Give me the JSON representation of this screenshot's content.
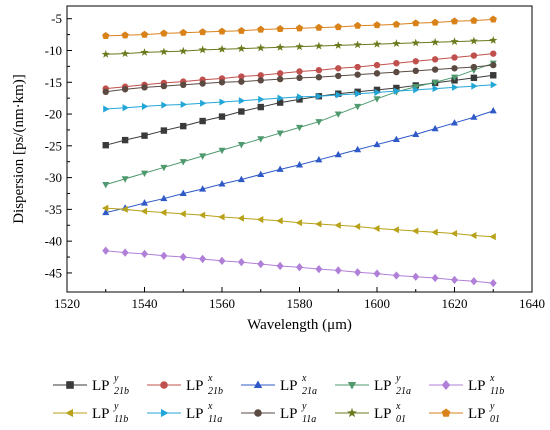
{
  "chart_data": {
    "type": "line",
    "title": "",
    "xlabel": "Wavelength (μm)",
    "ylabel": "Dispersion [ps/(nm·km)]",
    "xlim": [
      1520,
      1640
    ],
    "ylim": [
      -48,
      -3
    ],
    "xticks": [
      1520,
      1540,
      1560,
      1580,
      1600,
      1620,
      1640
    ],
    "yticks": [
      -5,
      -10,
      -15,
      -20,
      -25,
      -30,
      -35,
      -40,
      -45
    ],
    "grid": false,
    "legend_position": "bottom",
    "x": [
      1530,
      1535,
      1540,
      1545,
      1550,
      1555,
      1560,
      1565,
      1570,
      1575,
      1580,
      1585,
      1590,
      1595,
      1600,
      1605,
      1610,
      1615,
      1620,
      1625,
      1630
    ],
    "series": [
      {
        "name": "LP21b^y",
        "label": {
          "base": "LP",
          "sub": "21b",
          "sup": "y"
        },
        "marker": "square",
        "color": "#3a3a3a",
        "filled": true,
        "values": [
          -24.9,
          -24.1,
          -23.4,
          -22.6,
          -21.9,
          -21.1,
          -20.4,
          -19.6,
          -18.9,
          -18.2,
          -17.7,
          -17.2,
          -16.8,
          -16.5,
          -16.2,
          -15.9,
          -15.5,
          -15.1,
          -14.7,
          -14.3,
          -13.9
        ]
      },
      {
        "name": "LP21b^x",
        "label": {
          "base": "LP",
          "sub": "21b",
          "sup": "x"
        },
        "marker": "circle",
        "color": "#c0504d",
        "filled": true,
        "values": [
          -16.0,
          -15.7,
          -15.4,
          -15.1,
          -14.9,
          -14.6,
          -14.4,
          -14.1,
          -13.9,
          -13.6,
          -13.3,
          -13.1,
          -12.8,
          -12.6,
          -12.3,
          -12.0,
          -11.7,
          -11.4,
          -11.1,
          -10.8,
          -10.5
        ]
      },
      {
        "name": "LP21a^x",
        "label": {
          "base": "LP",
          "sub": "21a",
          "sup": "x"
        },
        "marker": "triangle-up",
        "color": "#2e59c7",
        "filled": true,
        "values": [
          -35.5,
          -34.8,
          -34.0,
          -33.3,
          -32.5,
          -31.8,
          -31.0,
          -30.3,
          -29.5,
          -28.7,
          -28.0,
          -27.2,
          -26.4,
          -25.6,
          -24.8,
          -24.0,
          -23.2,
          -22.3,
          -21.4,
          -20.5,
          -19.5
        ]
      },
      {
        "name": "LP21a^y",
        "label": {
          "base": "LP",
          "sub": "21a",
          "sup": "y"
        },
        "marker": "triangle-down",
        "color": "#4e9a6e",
        "filled": true,
        "values": [
          -31.1,
          -30.2,
          -29.3,
          -28.4,
          -27.5,
          -26.6,
          -25.7,
          -24.8,
          -23.9,
          -23.0,
          -22.1,
          -21.2,
          -20.0,
          -18.8,
          -17.6,
          -16.5,
          -15.7,
          -15.0,
          -14.2,
          -13.1,
          -12.0
        ]
      },
      {
        "name": "LP11b^x",
        "label": {
          "base": "LP",
          "sub": "11b",
          "sup": "x"
        },
        "marker": "diamond",
        "color": "#b07fd8",
        "filled": true,
        "values": [
          -41.5,
          -41.8,
          -42.0,
          -42.3,
          -42.5,
          -42.8,
          -43.1,
          -43.3,
          -43.6,
          -43.9,
          -44.1,
          -44.4,
          -44.6,
          -44.9,
          -45.1,
          -45.4,
          -45.6,
          -45.8,
          -46.1,
          -46.3,
          -46.6
        ]
      },
      {
        "name": "LP11b^y",
        "label": {
          "base": "LP",
          "sub": "11b",
          "sup": "y"
        },
        "marker": "triangle-left",
        "color": "#b8a21a",
        "filled": true,
        "values": [
          -34.8,
          -35.0,
          -35.3,
          -35.5,
          -35.7,
          -35.9,
          -36.2,
          -36.4,
          -36.6,
          -36.8,
          -37.1,
          -37.3,
          -37.5,
          -37.7,
          -38.0,
          -38.2,
          -38.4,
          -38.6,
          -38.8,
          -39.1,
          -39.3
        ]
      },
      {
        "name": "LP11a^x",
        "label": {
          "base": "LP",
          "sub": "11a",
          "sup": "x"
        },
        "marker": "triangle-right",
        "color": "#22a6d8",
        "filled": true,
        "values": [
          -19.2,
          -19.0,
          -18.8,
          -18.6,
          -18.5,
          -18.3,
          -18.1,
          -17.9,
          -17.7,
          -17.5,
          -17.3,
          -17.2,
          -17.0,
          -16.8,
          -16.6,
          -16.4,
          -16.2,
          -16.0,
          -15.8,
          -15.6,
          -15.4
        ]
      },
      {
        "name": "LP11a^y",
        "label": {
          "base": "LP",
          "sub": "11a",
          "sup": "y"
        },
        "marker": "circle",
        "color": "#5a4a42",
        "filled": true,
        "values": [
          -16.5,
          -16.1,
          -15.8,
          -15.6,
          -15.4,
          -15.2,
          -15.0,
          -14.9,
          -14.7,
          -14.5,
          -14.3,
          -14.2,
          -14.0,
          -13.8,
          -13.6,
          -13.4,
          -13.2,
          -13.0,
          -12.8,
          -12.6,
          -12.3
        ]
      },
      {
        "name": "LP01^x",
        "label": {
          "base": "LP",
          "sub": "01",
          "sup": "x"
        },
        "marker": "star",
        "color": "#6b7a1e",
        "filled": true,
        "values": [
          -10.6,
          -10.5,
          -10.3,
          -10.2,
          -10.1,
          -9.9,
          -9.8,
          -9.7,
          -9.6,
          -9.5,
          -9.4,
          -9.3,
          -9.2,
          -9.1,
          -9.0,
          -8.9,
          -8.8,
          -8.7,
          -8.6,
          -8.5,
          -8.4
        ]
      },
      {
        "name": "LP01^y",
        "label": {
          "base": "LP",
          "sub": "01",
          "sup": "y"
        },
        "marker": "pentagon",
        "color": "#d9821a",
        "filled": true,
        "values": [
          -7.7,
          -7.6,
          -7.5,
          -7.3,
          -7.2,
          -7.1,
          -7.0,
          -6.9,
          -6.7,
          -6.6,
          -6.5,
          -6.4,
          -6.3,
          -6.1,
          -6.0,
          -5.9,
          -5.7,
          -5.6,
          -5.4,
          -5.3,
          -5.1
        ]
      }
    ]
  }
}
